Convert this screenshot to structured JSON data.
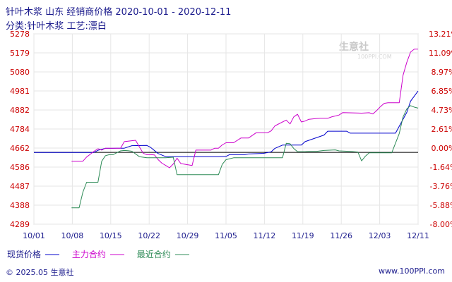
{
  "title": "针叶木浆 山东 经销商价格  2020-10-01 - 2020-12-11",
  "subtitle": "分类:针叶木浆 工艺:漂白",
  "footer_left": "© 2025.05 生意社",
  "footer_right": "www.100PPI.com",
  "watermark": "生意社",
  "watermark_url": "100PPI.COM",
  "colors": {
    "blue": "#0000cc",
    "magenta": "#cc00cc",
    "green": "#2e8b57",
    "axis_left": "#cc0000",
    "axis_right": "#cc0000",
    "grid": "#e6e6e6",
    "baseline": "#000000"
  },
  "chart_data": {
    "type": "line",
    "x_ticks": [
      "10/01",
      "10/08",
      "10/15",
      "10/22",
      "10/29",
      "11/05",
      "11/12",
      "11/19",
      "11/26",
      "12/03",
      "12/11"
    ],
    "y_left_ticks": [
      "5278",
      "5179",
      "5080",
      "4981",
      "4882",
      "4784",
      "4662",
      "4586",
      "4487",
      "4388",
      "4289"
    ],
    "y_right_ticks": [
      "13.21%",
      "11.09%",
      "8.97%",
      "6.85%",
      "4.73%",
      "2.61%",
      "0.00%",
      "-1.64%",
      "-3.76%",
      "-5.88%",
      "-8.00%"
    ],
    "ylim": [
      4289,
      5278
    ],
    "baseline": 4662,
    "legend": [
      {
        "name": "现货价格",
        "color": "#0000cc"
      },
      {
        "name": "主力合约",
        "color": "#cc00cc"
      },
      {
        "name": "最近合约",
        "color": "#2e8b57"
      }
    ],
    "series": [
      {
        "name": "现货价格",
        "color": "#0000cc",
        "points": [
          [
            0,
            4662
          ],
          [
            16,
            4662
          ],
          [
            17,
            4673
          ],
          [
            19,
            4683
          ],
          [
            21,
            4683
          ],
          [
            22,
            4684
          ],
          [
            24,
            4684
          ],
          [
            26,
            4697
          ],
          [
            30,
            4698
          ],
          [
            31,
            4688
          ],
          [
            33,
            4656
          ],
          [
            35,
            4640
          ],
          [
            40,
            4640
          ],
          [
            43,
            4640
          ],
          [
            47,
            4640
          ],
          [
            49,
            4640
          ],
          [
            51,
            4641
          ],
          [
            52,
            4651
          ],
          [
            56,
            4651
          ],
          [
            57,
            4654
          ],
          [
            61,
            4657
          ],
          [
            63,
            4665
          ],
          [
            64,
            4683
          ],
          [
            66,
            4700
          ],
          [
            71,
            4700
          ],
          [
            72,
            4718
          ],
          [
            77,
            4752
          ],
          [
            78,
            4772
          ],
          [
            83,
            4772
          ],
          [
            84,
            4762
          ],
          [
            91,
            4762
          ],
          [
            94,
            4762
          ],
          [
            96,
            4762
          ],
          [
            99,
            4870
          ],
          [
            100,
            4928
          ],
          [
            102,
            4981
          ]
        ]
      },
      {
        "name": "主力合约",
        "color": "#cc00cc",
        "points": [
          [
            10,
            4616
          ],
          [
            13,
            4616
          ],
          [
            14,
            4638
          ],
          [
            16,
            4668
          ],
          [
            17,
            4681
          ],
          [
            18,
            4674
          ],
          [
            19,
            4684
          ],
          [
            21,
            4684
          ],
          [
            23,
            4684
          ],
          [
            24,
            4718
          ],
          [
            27,
            4725
          ],
          [
            28,
            4691
          ],
          [
            29,
            4658
          ],
          [
            30,
            4650
          ],
          [
            31,
            4650
          ],
          [
            32,
            4649
          ],
          [
            33,
            4624
          ],
          [
            34,
            4606
          ],
          [
            35,
            4594
          ],
          [
            36,
            4582
          ],
          [
            37,
            4602
          ],
          [
            38,
            4632
          ],
          [
            39,
            4604
          ],
          [
            42,
            4594
          ],
          [
            43,
            4674
          ],
          [
            46,
            4674
          ],
          [
            47,
            4674
          ],
          [
            48,
            4684
          ],
          [
            49,
            4684
          ],
          [
            50,
            4701
          ],
          [
            51,
            4712
          ],
          [
            53,
            4712
          ],
          [
            55,
            4737
          ],
          [
            57,
            4737
          ],
          [
            59,
            4764
          ],
          [
            62,
            4764
          ],
          [
            63,
            4774
          ],
          [
            64,
            4800
          ],
          [
            67,
            4830
          ],
          [
            68,
            4810
          ],
          [
            69,
            4847
          ],
          [
            70,
            4860
          ],
          [
            71,
            4820
          ],
          [
            72,
            4825
          ],
          [
            73,
            4834
          ],
          [
            75,
            4838
          ],
          [
            76,
            4839
          ],
          [
            78,
            4839
          ],
          [
            79,
            4846
          ],
          [
            81,
            4856
          ],
          [
            82,
            4869
          ],
          [
            87,
            4866
          ],
          [
            89,
            4868
          ],
          [
            90,
            4862
          ],
          [
            91,
            4879
          ],
          [
            92,
            4900
          ],
          [
            93,
            4917
          ],
          [
            94,
            4920
          ],
          [
            96,
            4920
          ],
          [
            97,
            4920
          ],
          [
            98,
            5063
          ],
          [
            99,
            5130
          ],
          [
            100,
            5183
          ],
          [
            101,
            5199
          ],
          [
            102,
            5199
          ]
        ]
      },
      {
        "name": "最近合约",
        "color": "#2e8b57",
        "points": [
          [
            10,
            4374
          ],
          [
            12,
            4374
          ],
          [
            13,
            4455
          ],
          [
            14,
            4507
          ],
          [
            15,
            4507
          ],
          [
            17,
            4507
          ],
          [
            18,
            4616
          ],
          [
            19,
            4645
          ],
          [
            20,
            4650
          ],
          [
            21,
            4650
          ],
          [
            22,
            4660
          ],
          [
            23,
            4670
          ],
          [
            24,
            4672
          ],
          [
            25,
            4671
          ],
          [
            26,
            4668
          ],
          [
            28,
            4640
          ],
          [
            30,
            4634
          ],
          [
            32,
            4634
          ],
          [
            35,
            4634
          ],
          [
            37,
            4637
          ],
          [
            38,
            4546
          ],
          [
            40,
            4546
          ],
          [
            41,
            4546
          ],
          [
            45,
            4546
          ],
          [
            47,
            4546
          ],
          [
            49,
            4546
          ],
          [
            50,
            4600
          ],
          [
            51,
            4624
          ],
          [
            53,
            4634
          ],
          [
            55,
            4634
          ],
          [
            57,
            4634
          ],
          [
            60,
            4634
          ],
          [
            61,
            4634
          ],
          [
            62,
            4634
          ],
          [
            63,
            4634
          ],
          [
            64,
            4634
          ],
          [
            66,
            4634
          ],
          [
            67,
            4709
          ],
          [
            68,
            4707
          ],
          [
            69,
            4682
          ],
          [
            70,
            4666
          ],
          [
            72,
            4666
          ],
          [
            73,
            4667
          ],
          [
            74,
            4667
          ],
          [
            75,
            4667
          ],
          [
            77,
            4672
          ],
          [
            80,
            4675
          ],
          [
            81,
            4670
          ],
          [
            84,
            4667
          ],
          [
            86,
            4664
          ],
          [
            87,
            4618
          ],
          [
            88,
            4642
          ],
          [
            89,
            4660
          ],
          [
            91,
            4660
          ],
          [
            92,
            4660
          ],
          [
            94,
            4660
          ],
          [
            95,
            4660
          ],
          [
            97,
            4760
          ],
          [
            98,
            4846
          ],
          [
            99,
            4888
          ],
          [
            100,
            4905
          ],
          [
            101,
            4897
          ],
          [
            102,
            4892
          ]
        ]
      }
    ]
  }
}
